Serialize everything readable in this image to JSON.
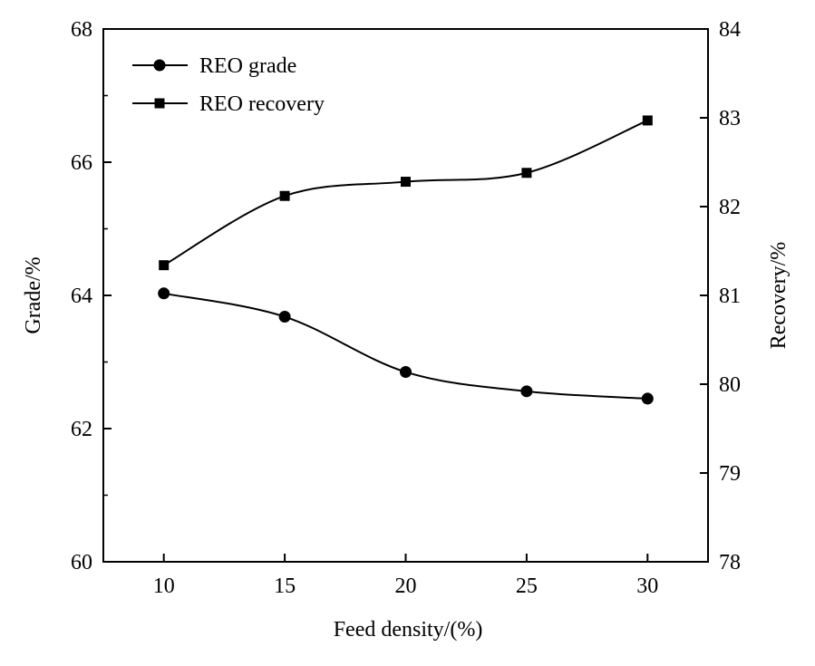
{
  "chart_data": {
    "type": "line",
    "title": "",
    "x": [
      10,
      15,
      20,
      25,
      30
    ],
    "xlabel": "Feed density/(%)",
    "xlim": [
      7.5,
      32.5
    ],
    "xticks": [
      "10",
      "15",
      "20",
      "25",
      "30"
    ],
    "y_left": {
      "label": "Grade/%",
      "lim": [
        60,
        68
      ],
      "ticks": [
        "60",
        "62",
        "64",
        "66",
        "68"
      ]
    },
    "y_right": {
      "label": "Recovery/%",
      "lim": [
        78,
        84
      ],
      "ticks": [
        "78",
        "79",
        "80",
        "81",
        "82",
        "83",
        "84"
      ]
    },
    "series": [
      {
        "name": "REO grade",
        "axis": "left",
        "marker": "circle",
        "values": [
          64.03,
          63.68,
          62.85,
          62.56,
          62.45
        ]
      },
      {
        "name": "REO recovery",
        "axis": "right",
        "marker": "square",
        "values": [
          81.34,
          82.12,
          82.28,
          82.38,
          82.97
        ]
      }
    ],
    "legend_position": "top-left",
    "grid": false,
    "colors": {
      "line": "#000000",
      "background": "#ffffff"
    }
  }
}
